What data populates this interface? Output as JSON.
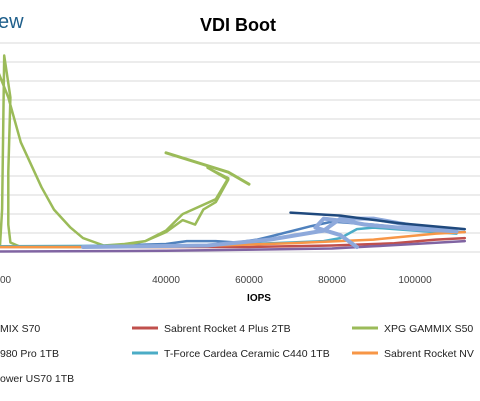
{
  "logo_text": "ew",
  "chart_data": {
    "type": "line",
    "title": "VDI Boot",
    "xlabel": "IOPS",
    "ylabel": "",
    "xlim": [
      -2000,
      112000
    ],
    "x_ticks": [
      "00",
      "40000",
      "60000",
      "80000",
      "100000"
    ],
    "x_tick_values": [
      0,
      40000,
      60000,
      80000,
      100000
    ],
    "grid": true,
    "legend_position": "bottom",
    "series": [
      {
        "name": "MIX S70",
        "color": "#4f81bd",
        "points": [
          [
            0,
            3.05
          ],
          [
            20000,
            3.05
          ],
          [
            40000,
            3.2
          ],
          [
            45000,
            3.4
          ],
          [
            52000,
            3.4
          ],
          [
            57000,
            3.3
          ],
          [
            62000,
            3.5
          ],
          [
            65000,
            3.7
          ],
          [
            75000,
            4.4
          ],
          [
            80000,
            4.7
          ],
          [
            90000,
            4.5
          ],
          [
            100000,
            4.2
          ],
          [
            112000,
            4.0
          ]
        ]
      },
      {
        "name": "Sabrent Rocket 4 Plus 2TB",
        "color": "#c0504d",
        "points": [
          [
            0,
            3.0
          ],
          [
            60000,
            3.0
          ],
          [
            80000,
            3.1
          ],
          [
            95000,
            3.25
          ],
          [
            105000,
            3.5
          ],
          [
            112000,
            3.6
          ]
        ]
      },
      {
        "name": "XPG GAMMIX S50",
        "color": "#9bbb59",
        "points": [
          [
            -2000,
            15.8
          ],
          [
            2000,
            13
          ],
          [
            5000,
            10
          ],
          [
            10000,
            7
          ],
          [
            13000,
            5.5
          ],
          [
            17000,
            4.3
          ],
          [
            20000,
            3.6
          ],
          [
            25000,
            3.1
          ],
          [
            30000,
            3.2
          ],
          [
            35000,
            3.4
          ],
          [
            40000,
            4.0
          ],
          [
            44000,
            4.8
          ],
          [
            47000,
            4.5
          ],
          [
            49000,
            5.5
          ],
          [
            52000,
            6.0
          ],
          [
            55000,
            7.5
          ],
          [
            50000,
            8.3
          ],
          [
            55000,
            7.6
          ],
          [
            52000,
            6.2
          ],
          [
            44000,
            5.2
          ],
          [
            40000,
            4.1
          ],
          [
            35000,
            3.4
          ],
          [
            30000,
            3.15
          ],
          [
            28000,
            3.05
          ],
          [
            20000,
            3.0
          ],
          [
            10000,
            3.0
          ],
          [
            5000,
            3.0
          ],
          [
            2500,
            3.3
          ],
          [
            2000,
            4.5
          ],
          [
            2000,
            8.0
          ],
          [
            2500,
            13.0
          ],
          [
            1000,
            15.8
          ],
          [
            500,
            5.5
          ],
          [
            0,
            3.1
          ],
          [
            -2000,
            3.0
          ]
        ]
      },
      {
        "name": "980 Pro 1TB",
        "color": "#8064a2",
        "points": [
          [
            0,
            2.7
          ],
          [
            40000,
            2.75
          ],
          [
            80000,
            2.9
          ],
          [
            90000,
            3.05
          ],
          [
            112000,
            3.4
          ]
        ]
      },
      {
        "name": "T-Force Cardea Ceramic C440 1TB",
        "color": "#4bacc6",
        "points": [
          [
            0,
            3.05
          ],
          [
            50000,
            3.1
          ],
          [
            70000,
            3.3
          ],
          [
            78000,
            3.4
          ],
          [
            82000,
            3.6
          ],
          [
            86000,
            4.2
          ],
          [
            90000,
            4.3
          ],
          [
            100000,
            4.1
          ],
          [
            110000,
            3.9
          ]
        ]
      },
      {
        "name": "Sabrent Rocket NV",
        "color": "#f79646",
        "points": [
          [
            0,
            3.0
          ],
          [
            40000,
            3.0
          ],
          [
            70000,
            3.25
          ],
          [
            90000,
            3.5
          ],
          [
            105000,
            3.9
          ],
          [
            112000,
            4.0
          ]
        ]
      },
      {
        "name": "ower US70 1TB",
        "color": "#8ea9db",
        "points": [
          [
            20000,
            3.0
          ],
          [
            50000,
            3.1
          ],
          [
            65000,
            3.5
          ],
          [
            78000,
            4.1
          ],
          [
            82000,
            4.9
          ],
          [
            90000,
            4.9
          ],
          [
            100000,
            4.4
          ],
          [
            110000,
            4.05
          ],
          [
            100000,
            4.2
          ],
          [
            88000,
            4.5
          ],
          [
            84000,
            4.7
          ],
          [
            78000,
            4.9
          ],
          [
            76000,
            4.3
          ],
          [
            82000,
            3.8
          ],
          [
            86000,
            3.0
          ]
        ]
      }
    ],
    "overlay_line": {
      "color": "#9bbb59",
      "points": [
        [
          40000,
          9.3
        ],
        [
          55000,
          8.0
        ],
        [
          60000,
          7.2
        ]
      ]
    },
    "overlay_dark": {
      "color": "#1f497d",
      "points": [
        [
          70000,
          5.3
        ],
        [
          82000,
          5.1
        ],
        [
          96000,
          4.6
        ],
        [
          112000,
          4.2
        ]
      ]
    }
  }
}
